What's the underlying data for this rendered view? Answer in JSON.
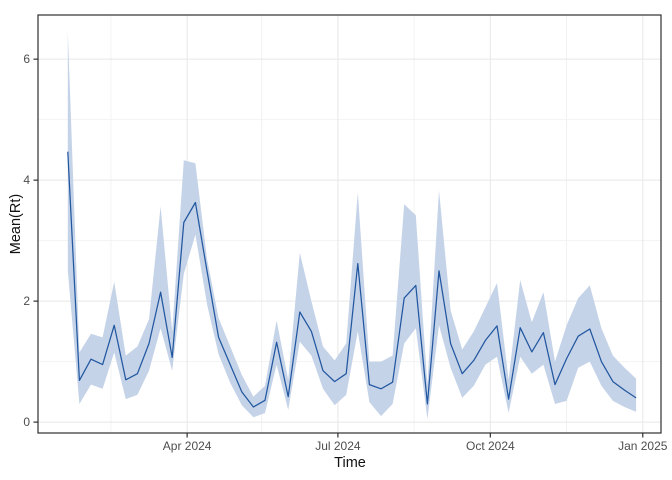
{
  "chart_data": {
    "type": "line",
    "title": "",
    "xlabel": "Time",
    "ylabel": "Mean(Rt)",
    "legend": "none",
    "grid": "on",
    "panel": {
      "background": "#ffffff",
      "border_color": "#2f2f2f",
      "grid_major_color": "#e7e7e7",
      "grid_minor_color": "#f2f2f2",
      "tick_color": "#2f2f2f",
      "tick_label_color": "#4d4d4d"
    },
    "x_axis": {
      "range": [
        "2024-01-02",
        "2025-01-12"
      ],
      "ticks": [
        {
          "date": "2024-04-01",
          "label": "Apr 2024"
        },
        {
          "date": "2024-07-01",
          "label": "Jul 2024"
        },
        {
          "date": "2024-10-01",
          "label": "Oct 2024"
        },
        {
          "date": "2025-01-01",
          "label": "Jan 2025"
        }
      ],
      "minor_ticks": [
        "2024-02-15",
        "2024-05-16",
        "2024-08-16",
        "2024-11-16"
      ]
    },
    "y_axis": {
      "range": [
        -0.18,
        6.73
      ],
      "ticks": [
        {
          "value": 0,
          "label": "0"
        },
        {
          "value": 2,
          "label": "2"
        },
        {
          "value": 4,
          "label": "4"
        },
        {
          "value": 6,
          "label": "6"
        }
      ],
      "minor_ticks": [
        1,
        3,
        5
      ]
    },
    "series": [
      {
        "name": "Mean(Rt)",
        "line_color": "#2257a0",
        "ribbon_color": "#c5d3e8",
        "dates": [
          "2024-01-20",
          "2024-01-27",
          "2024-02-03",
          "2024-02-10",
          "2024-02-17",
          "2024-02-24",
          "2024-03-02",
          "2024-03-09",
          "2024-03-16",
          "2024-03-23",
          "2024-03-30",
          "2024-04-06",
          "2024-04-13",
          "2024-04-20",
          "2024-04-27",
          "2024-05-04",
          "2024-05-11",
          "2024-05-18",
          "2024-05-25",
          "2024-06-01",
          "2024-06-08",
          "2024-06-15",
          "2024-06-22",
          "2024-06-29",
          "2024-07-06",
          "2024-07-13",
          "2024-07-20",
          "2024-07-27",
          "2024-08-03",
          "2024-08-10",
          "2024-08-17",
          "2024-08-24",
          "2024-08-31",
          "2024-09-07",
          "2024-09-14",
          "2024-09-21",
          "2024-09-28",
          "2024-10-05",
          "2024-10-12",
          "2024-10-19",
          "2024-10-26",
          "2024-11-02",
          "2024-11-09",
          "2024-11-16",
          "2024-11-23",
          "2024-11-30",
          "2024-12-07",
          "2024-12-14",
          "2024-12-21",
          "2024-12-28"
        ],
        "mean": [
          4.47,
          0.69,
          1.04,
          0.95,
          1.6,
          0.7,
          0.8,
          1.3,
          2.15,
          1.07,
          3.3,
          3.63,
          2.5,
          1.4,
          0.95,
          0.5,
          0.25,
          0.36,
          1.32,
          0.42,
          1.82,
          1.5,
          0.85,
          0.67,
          0.8,
          2.62,
          0.62,
          0.55,
          0.66,
          2.05,
          2.26,
          0.3,
          2.5,
          1.3,
          0.8,
          1.02,
          1.35,
          1.59,
          0.38,
          1.56,
          1.16,
          1.48,
          0.62,
          1.05,
          1.42,
          1.54,
          1.0,
          0.67,
          0.53,
          0.4
        ],
        "lower": [
          2.5,
          0.3,
          0.62,
          0.55,
          1.15,
          0.38,
          0.45,
          0.85,
          1.55,
          0.85,
          2.45,
          3.1,
          1.95,
          1.12,
          0.65,
          0.28,
          0.08,
          0.15,
          0.95,
          0.2,
          1.33,
          1.1,
          0.55,
          0.28,
          0.45,
          1.5,
          0.33,
          0.1,
          0.3,
          1.3,
          1.55,
          0.05,
          1.6,
          0.9,
          0.4,
          0.6,
          0.95,
          1.08,
          0.15,
          1.08,
          0.8,
          0.95,
          0.3,
          0.35,
          0.9,
          1.0,
          0.6,
          0.35,
          0.25,
          0.17
        ],
        "upper": [
          6.47,
          1.15,
          1.46,
          1.4,
          2.32,
          1.1,
          1.25,
          1.7,
          3.57,
          1.5,
          4.33,
          4.28,
          2.7,
          1.72,
          1.25,
          0.78,
          0.42,
          0.6,
          1.68,
          0.7,
          2.8,
          2.0,
          1.25,
          1.02,
          1.3,
          3.8,
          1.0,
          1.0,
          1.1,
          3.6,
          3.42,
          0.62,
          3.83,
          1.85,
          1.2,
          1.5,
          1.9,
          2.3,
          0.7,
          2.35,
          1.65,
          2.15,
          1.0,
          1.6,
          2.05,
          2.26,
          1.55,
          1.1,
          0.9,
          0.72
        ]
      }
    ]
  }
}
